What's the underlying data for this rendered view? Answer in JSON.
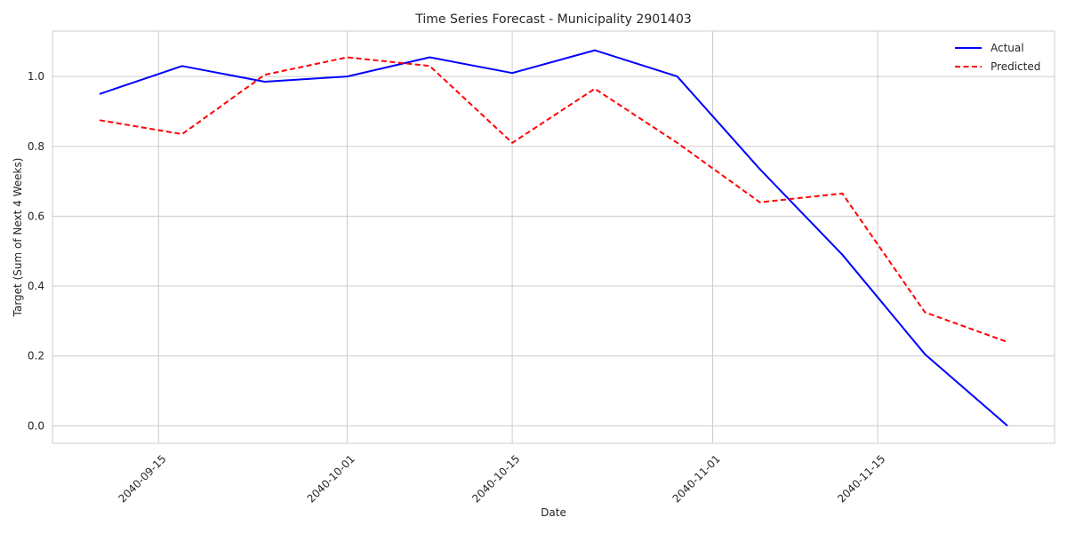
{
  "chart_data": {
    "type": "line",
    "title": "Time Series Forecast - Municipality 2901403",
    "xlabel": "Date",
    "ylabel": "Target (Sum of Next 4 Weeks)",
    "x": [
      "2040-09-10",
      "2040-09-17",
      "2040-09-24",
      "2040-10-01",
      "2040-10-08",
      "2040-10-15",
      "2040-10-22",
      "2040-10-29",
      "2040-11-05",
      "2040-11-12",
      "2040-11-19",
      "2040-11-26"
    ],
    "series": [
      {
        "name": "Actual",
        "color": "#0000ff",
        "style": "solid",
        "values": [
          0.95,
          1.03,
          0.985,
          1.0,
          1.055,
          1.01,
          1.075,
          1.0,
          0.735,
          0.49,
          0.205,
          0.0
        ]
      },
      {
        "name": "Predicted",
        "color": "#ff0000",
        "style": "dashed",
        "values": [
          0.875,
          0.835,
          1.005,
          1.055,
          1.03,
          0.81,
          0.965,
          0.81,
          0.64,
          0.665,
          0.325,
          0.24
        ]
      }
    ],
    "xticks": [
      "2040-09-15",
      "2040-10-01",
      "2040-10-15",
      "2040-11-01",
      "2040-11-15"
    ],
    "yticks": [
      0.0,
      0.2,
      0.4,
      0.6,
      0.8,
      1.0
    ],
    "ytick_labels": [
      "0.0",
      "0.2",
      "0.4",
      "0.6",
      "0.8",
      "1.0"
    ],
    "xlim": [
      "2040-09-06",
      "2040-11-30"
    ],
    "ylim": [
      -0.05,
      1.13
    ],
    "grid": true,
    "legend_position": "top-right"
  }
}
